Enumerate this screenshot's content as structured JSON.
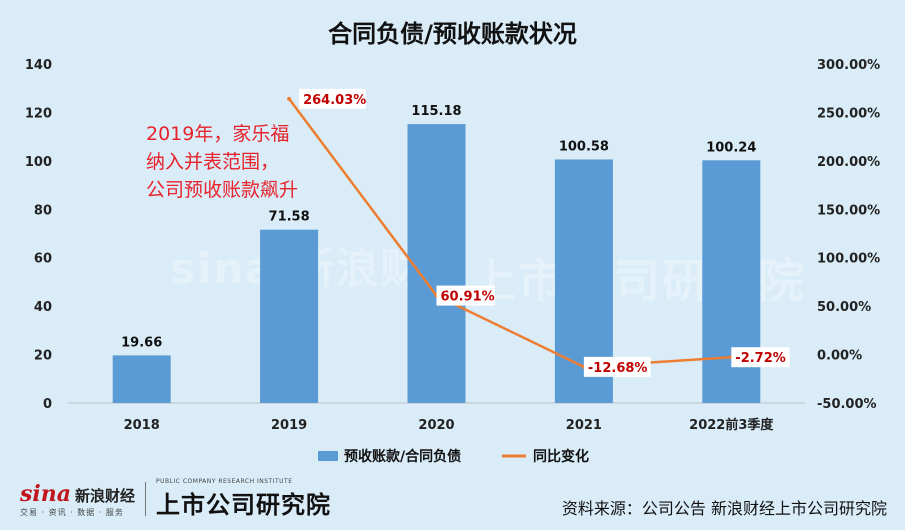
{
  "title": "合同负债/预收账款状况",
  "annotation": [
    "2019年，家乐福",
    "纳入并表范围，",
    "公司预收账款飙升"
  ],
  "source": "资料来源：公司公告 新浪财经上市公司研究院",
  "logos": {
    "sina_mark": "sina",
    "sina_name": "新浪财经",
    "sina_sub": "交易 · 资讯 · 数据 · 服务",
    "institute_name": "上市公司研究院",
    "institute_sub": "PUBLIC COMPANY RESEARCH INSTITUTE"
  },
  "watermark": {
    "left": "sina 新浪财经",
    "right": "上市公司研究院"
  },
  "colors": {
    "bar": "#5b9bd5",
    "line": "#ed7d31",
    "label_red": "#c00000",
    "background": "#d9ecf8"
  },
  "chart_data": {
    "type": "bar",
    "categories": [
      "2018",
      "2019",
      "2020",
      "2021",
      "2022前3季度"
    ],
    "series": [
      {
        "name": "预收账款/合同负债",
        "type": "bar",
        "axis": "left",
        "values": [
          19.66,
          71.58,
          115.18,
          100.58,
          100.24
        ],
        "labels": [
          "19.66",
          "71.58",
          "115.18",
          "100.58",
          "100.24"
        ]
      },
      {
        "name": "同比变化",
        "type": "line",
        "axis": "right",
        "values": [
          null,
          264.03,
          60.91,
          -12.68,
          -2.72
        ],
        "labels": [
          "",
          "264.03%",
          "60.91%",
          "-12.68%",
          "-2.72%"
        ]
      }
    ],
    "ylim_left": [
      0,
      140
    ],
    "yticks_left": [
      "0",
      "20",
      "40",
      "60",
      "80",
      "100",
      "120",
      "140"
    ],
    "ylim_right": [
      -50,
      300
    ],
    "yticks_right": [
      "-50.00%",
      "0.00%",
      "50.00%",
      "100.00%",
      "150.00%",
      "200.00%",
      "250.00%",
      "300.00%"
    ],
    "legend_position": "bottom",
    "grid": false
  }
}
